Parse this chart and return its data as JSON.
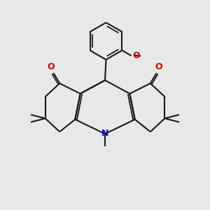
{
  "bg_color": "#e8e8e8",
  "bond_color": "#1a1a1a",
  "O_color": "#cc0000",
  "N_color": "#0000cc",
  "lw": 1.5,
  "xlim": [
    0,
    10
  ],
  "ylim": [
    0,
    10
  ]
}
